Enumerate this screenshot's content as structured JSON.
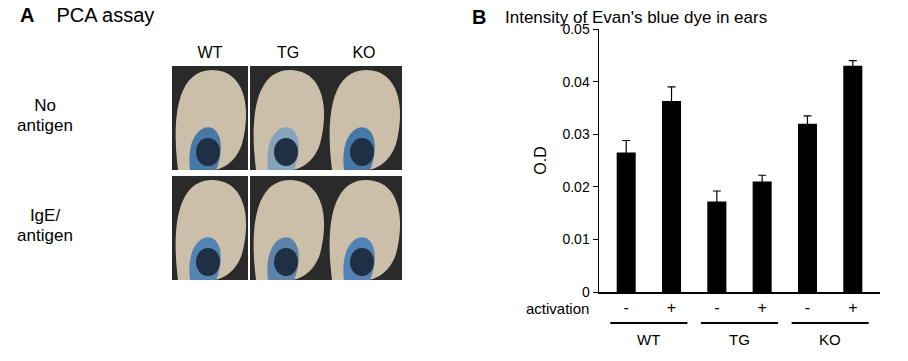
{
  "panel_a": {
    "label": "A",
    "title": "PCA assay",
    "columns": [
      "WT",
      "TG",
      "KO"
    ],
    "rows": [
      "No antigen",
      "IgE/ antigen"
    ]
  },
  "chart_data": {
    "type": "bar",
    "label": "B",
    "title": "Intensity of Evan's blue dye in ears",
    "y_label": "O.D",
    "x_label": "activation",
    "categories": [
      "-",
      "+",
      "-",
      "+",
      "-",
      "+"
    ],
    "groups": [
      "WT",
      "TG",
      "KO"
    ],
    "values": [
      0.0265,
      0.0363,
      0.0172,
      0.021,
      0.032,
      0.043
    ],
    "errors": [
      0.0023,
      0.0027,
      0.002,
      0.0012,
      0.0015,
      0.001
    ],
    "color": "#000000",
    "ylim": [
      0,
      0.05
    ],
    "yticks": [
      0,
      0.01,
      0.02,
      0.03,
      0.04,
      0.05
    ],
    "grid": false
  }
}
